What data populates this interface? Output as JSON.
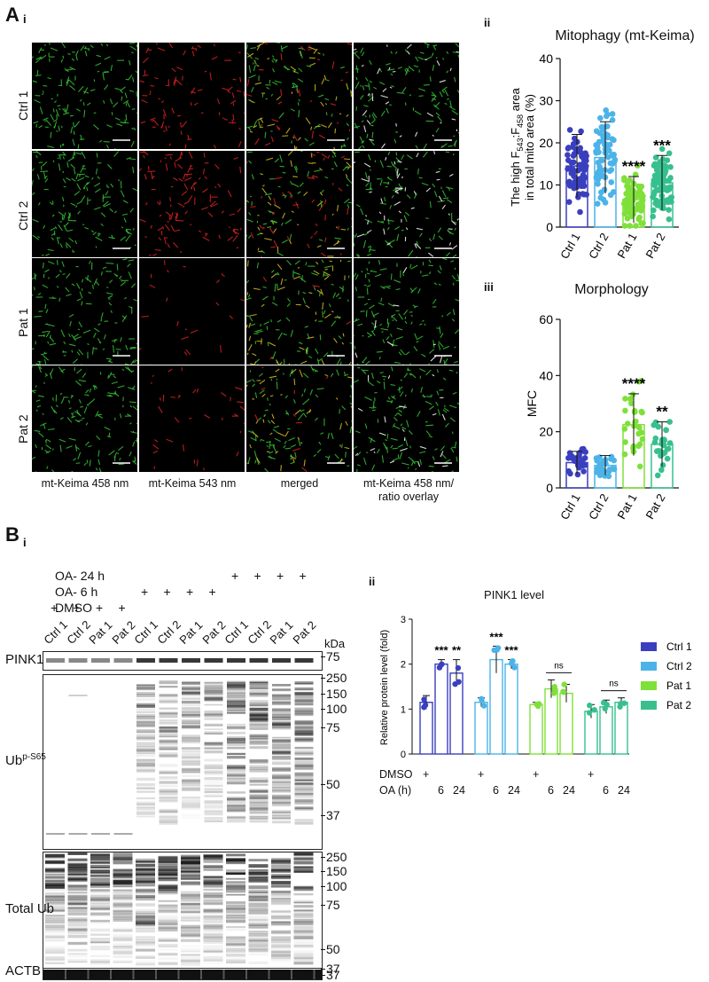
{
  "panelA": {
    "letter": "A",
    "sub_i": "i",
    "sub_ii": "ii",
    "sub_iii": "iii",
    "rows": [
      "Ctrl 1",
      "Ctrl 2",
      "Pat 1",
      "Pat 2"
    ],
    "columns": [
      "mt-Keima 458 nm",
      "mt-Keima 543 nm",
      "merged",
      "mt-Keima 458 nm/\nratio overlay"
    ]
  },
  "colors": {
    "ctrl1": "#3a3fbf",
    "ctrl2": "#4cb3e8",
    "pat1": "#7fe03a",
    "pat2": "#37c08e"
  },
  "chart_data": [
    {
      "type": "bar",
      "title": "Mitophagy (mt-Keima)",
      "ylabel": "The high F543:F458 area in total mito area (%)",
      "ylabel_line1": "The high F",
      "ylabel_sub1": "543",
      "ylabel_mid": ":F",
      "ylabel_sub2": "458",
      "ylabel_end": " area",
      "ylabel_line2": "in total mito area (%)",
      "categories": [
        "Ctrl 1",
        "Ctrl 2",
        "Pat 1",
        "Pat 2"
      ],
      "values": [
        14.5,
        16.5,
        6.5,
        10.5
      ],
      "sd": [
        7.5,
        8.5,
        5.5,
        6.5
      ],
      "ylim": [
        0,
        40
      ],
      "yticks": [
        0,
        10,
        20,
        30,
        40
      ],
      "significance": [
        "",
        "",
        "****",
        "***"
      ]
    },
    {
      "type": "bar",
      "title": "Morphology",
      "ylabel": "MFC",
      "categories": [
        "Ctrl 1",
        "Ctrl 2",
        "Pat 1",
        "Pat 2"
      ],
      "values": [
        9,
        8,
        22.5,
        15.5
      ],
      "sd": [
        4,
        3.5,
        11,
        8
      ],
      "ylim": [
        0,
        60
      ],
      "yticks": [
        0,
        20,
        40,
        60
      ],
      "significance": [
        "",
        "",
        "****",
        "**"
      ]
    },
    {
      "type": "bar",
      "title": "PINK1 level",
      "ylabel": "Relative protein level (fold)",
      "series": [
        {
          "name": "Ctrl 1",
          "values": [
            1.15,
            2.0,
            1.8
          ],
          "sd": [
            0.15,
            0.1,
            0.3
          ]
        },
        {
          "name": "Ctrl 2",
          "values": [
            1.15,
            2.1,
            2.0
          ],
          "sd": [
            0.1,
            0.3,
            0.1
          ]
        },
        {
          "name": "Pat 1",
          "values": [
            1.1,
            1.45,
            1.35
          ],
          "sd": [
            0.05,
            0.2,
            0.2
          ]
        },
        {
          "name": "Pat 2",
          "values": [
            0.95,
            1.05,
            1.15
          ],
          "sd": [
            0.15,
            0.15,
            0.1
          ]
        }
      ],
      "conditions": [
        "DMSO",
        "6",
        "24"
      ],
      "ylim": [
        0,
        3
      ],
      "yticks": [
        0,
        1,
        2,
        3
      ],
      "significance": [
        [
          "",
          "***",
          "**"
        ],
        [
          "",
          "***",
          "***"
        ],
        [
          "",
          "ns",
          ""
        ],
        [
          "",
          "ns",
          ""
        ]
      ],
      "row_labels": [
        "DMSO",
        "OA (h)"
      ],
      "dmso_mark": "+",
      "oa_marks": [
        "6",
        "24"
      ]
    }
  ],
  "panelB": {
    "letter": "B",
    "sub_i": "i",
    "sub_ii": "ii",
    "treatments": [
      "OA- 24 h",
      "OA- 6 h",
      "DMSO"
    ],
    "plus": "+",
    "lanes": [
      "Ctrl 1",
      "Ctrl 2",
      "Pat 1",
      "Pat 2",
      "Ctrl 1",
      "Ctrl 2",
      "Pat 1",
      "Pat 2",
      "Ctrl 1",
      "Ctrl 2",
      "Pat 1",
      "Pat 2"
    ],
    "kda_label": "kDa",
    "blots": [
      {
        "name": "PINK1",
        "markers": [
          "75"
        ]
      },
      {
        "name": "Ub",
        "sup": "p-S65",
        "markers": [
          "250",
          "150",
          "100",
          "75",
          "50",
          "37"
        ]
      },
      {
        "name": "Total Ub",
        "markers": [
          "250",
          "150",
          "100",
          "75",
          "50",
          "37"
        ]
      },
      {
        "name": "ACTB",
        "markers": [
          "37"
        ]
      }
    ]
  }
}
